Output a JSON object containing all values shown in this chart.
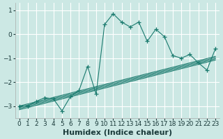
{
  "title": "",
  "xlabel": "Humidex (Indice chaleur)",
  "ylabel": "",
  "x_data": [
    0,
    1,
    2,
    3,
    4,
    5,
    6,
    7,
    8,
    9,
    10,
    11,
    12,
    13,
    14,
    15,
    16,
    17,
    18,
    19,
    20,
    21,
    22,
    23
  ],
  "y_main": [
    -3.0,
    -3.0,
    -2.8,
    -2.65,
    -2.7,
    -3.2,
    -2.6,
    -2.35,
    -1.35,
    -2.5,
    0.4,
    0.85,
    0.5,
    0.3,
    0.5,
    -0.3,
    0.2,
    -0.1,
    -0.9,
    -1.0,
    -0.85,
    -1.2,
    -1.5,
    -0.6
  ],
  "y_line1": [
    -3.0,
    -2.91,
    -2.82,
    -2.73,
    -2.64,
    -2.55,
    -2.46,
    -2.37,
    -2.28,
    -2.19,
    -2.1,
    -2.01,
    -1.92,
    -1.83,
    -1.74,
    -1.65,
    -1.56,
    -1.47,
    -1.38,
    -1.29,
    -1.2,
    -1.11,
    -1.02,
    -0.93
  ],
  "y_line2": [
    -3.05,
    -2.96,
    -2.87,
    -2.78,
    -2.69,
    -2.6,
    -2.51,
    -2.42,
    -2.33,
    -2.24,
    -2.15,
    -2.06,
    -1.97,
    -1.88,
    -1.79,
    -1.7,
    -1.61,
    -1.52,
    -1.43,
    -1.34,
    -1.25,
    -1.16,
    -1.07,
    -0.98
  ],
  "y_line3": [
    -3.1,
    -3.01,
    -2.92,
    -2.83,
    -2.74,
    -2.65,
    -2.56,
    -2.47,
    -2.38,
    -2.29,
    -2.2,
    -2.11,
    -2.02,
    -1.93,
    -1.84,
    -1.75,
    -1.66,
    -1.57,
    -1.48,
    -1.39,
    -1.3,
    -1.21,
    -1.12,
    -1.03
  ],
  "y_line4": [
    -3.15,
    -3.06,
    -2.97,
    -2.88,
    -2.79,
    -2.7,
    -2.61,
    -2.52,
    -2.43,
    -2.34,
    -2.25,
    -2.16,
    -2.07,
    -1.98,
    -1.89,
    -1.8,
    -1.71,
    -1.62,
    -1.53,
    -1.44,
    -1.35,
    -1.26,
    -1.17,
    -1.08
  ],
  "line_color": "#1a7a6e",
  "bg_color": "#cce8e4",
  "grid_color": "#ffffff",
  "xlim": [
    -0.5,
    23.5
  ],
  "ylim": [
    -3.5,
    1.3
  ],
  "yticks": [
    -3,
    -2,
    -1,
    0,
    1
  ],
  "xticks": [
    0,
    1,
    2,
    3,
    4,
    5,
    6,
    7,
    8,
    9,
    10,
    11,
    12,
    13,
    14,
    15,
    16,
    17,
    18,
    19,
    20,
    21,
    22,
    23
  ],
  "xlabel_fontsize": 8,
  "tick_fontsize": 6.5
}
